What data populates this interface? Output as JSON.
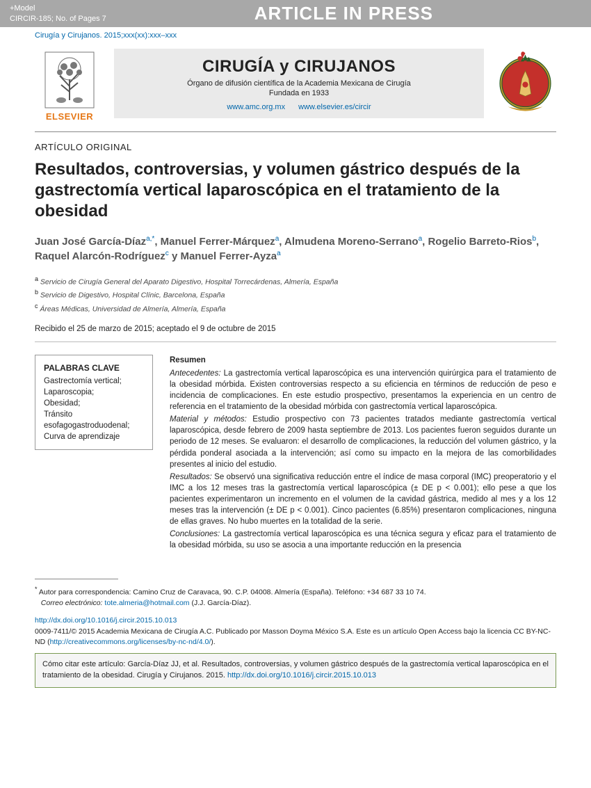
{
  "banner": {
    "model": "+Model",
    "ref": "CIRCIR-185;   No. of Pages 7",
    "press": "ARTICLE IN PRESS"
  },
  "citation_line": "Cirugía y Cirujanos. 2015;xxx(xx):xxx–xxx",
  "masthead": {
    "elsevier": "ELSEVIER",
    "journal_title": "CIRUGÍA y CIRUJANOS",
    "subtitle": "Órgano de difusión científica de la Academia Mexicana de Cirugía",
    "founded": "Fundada en 1933",
    "link1": "www.amc.org.mx",
    "link2": "www.elsevier.es/circir"
  },
  "article": {
    "type": "ARTÍCULO ORIGINAL",
    "title": "Resultados, controversias, y volumen gástrico después de la gastrectomía vertical laparoscópica en el tratamiento de la obesidad",
    "authors_html": "Juan José García-Díaz<sup>a,*</sup>, Manuel Ferrer-Márquez<sup>a</sup>, Almudena Moreno-Serrano<sup>a</sup>, Rogelio Barreto-Rios<sup>b</sup>, Raquel Alarcón-Rodríguez<sup>c</sup> y Manuel Ferrer-Ayza<sup>a</sup>",
    "affiliations": [
      {
        "sup": "a",
        "text": "Servicio de Cirugía General del Aparato Digestivo, Hospital Torrecárdenas, Almería, España"
      },
      {
        "sup": "b",
        "text": "Servicio de Digestivo, Hospital Clínic, Barcelona, España"
      },
      {
        "sup": "c",
        "text": "Áreas Médicas, Universidad de Almería, Almería, España"
      }
    ],
    "dates": "Recibido el 25 de marzo de 2015; aceptado el 9 de octubre de 2015"
  },
  "keywords": {
    "head": "PALABRAS CLAVE",
    "items": "Gastrectomía vertical;\nLaparoscopia;\nObesidad;\nTránsito esofagogastroduodenal;\nCurva de aprendizaje"
  },
  "abstract": {
    "head": "Resumen",
    "antecedentes_label": "Antecedentes:",
    "antecedentes": " La gastrectomía vertical laparoscópica es una intervención quirúrgica para el tratamiento de la obesidad mórbida. Existen controversias respecto a su eficiencia en términos de reducción de peso e incidencia de complicaciones. En este estudio prospectivo, presentamos la experiencia en un centro de referencia en el tratamiento de la obesidad mórbida con gastrectomía vertical laparoscópica.",
    "material_label": "Material y métodos:",
    "material": " Estudio prospectivo con 73 pacientes tratados mediante gastrectomía vertical laparoscópica, desde febrero de 2009 hasta septiembre de 2013. Los pacientes fueron seguidos durante un periodo de 12 meses. Se evaluaron: el desarrollo de complicaciones, la reducción del volumen gástrico, y la pérdida ponderal asociada a la intervención; así como su impacto en la mejora de las comorbilidades presentes al inicio del estudio.",
    "resultados_label": "Resultados:",
    "resultados": " Se observó una significativa reducción entre el índice de masa corporal (IMC) preoperatorio y el IMC a los 12 meses tras la gastrectomía vertical laparoscópica (± DE p < 0.001); ello pese a que los pacientes experimentaron un incremento en el volumen de la cavidad gástrica, medido al mes y a los 12 meses tras la intervención (± DE p < 0.001). Cinco pacientes (6.85%) presentaron complicaciones, ninguna de ellas graves. No hubo muertes en la totalidad de la serie.",
    "conclusiones_label": "Conclusiones:",
    "conclusiones": " La gastrectomía vertical laparoscópica es una técnica segura y eficaz para el tratamiento de la obesidad mórbida, su uso se asocia a una importante reducción en la presencia"
  },
  "footer": {
    "corr_marker": "*",
    "corr_text": "Autor para correspondencia: Camino Cruz de Caravaca, 90. C.P. 04008. Almería (España). Teléfono: +34 687 33 10 74.",
    "email_label": "Correo electrónico:",
    "email": "tote.almeria@hotmail.com",
    "email_tail": " (J.J. García-Díaz).",
    "doi": "http://dx.doi.org/10.1016/j.circir.2015.10.013",
    "issn_line": "0009-7411/© 2015 Academia Mexicana de Cirugía A.C. Publicado por Masson Doyma México S.A. Este es un artículo Open Access bajo la licencia CC BY-NC-ND (",
    "cc_link": "http://creativecommons.org/licenses/by-nc-nd/4.0/",
    "issn_tail": ").",
    "cite_lead": "Cómo citar este artículo: García-Díaz JJ, et al. Resultados, controversias, y volumen gástrico después de la gastrectomía vertical laparoscópica en el tratamiento de la obesidad. Cirugía y Cirujanos. 2015. ",
    "cite_doi": "http://dx.doi.org/10.1016/j.circir.2015.10.013"
  },
  "colors": {
    "banner_bg": "#a8a8a8",
    "link": "#0066aa",
    "elsevier_orange": "#e67817",
    "journal_box_bg": "#eaeaea",
    "author_gray": "#555555",
    "cite_border": "#7a9a52",
    "cite_bg": "#f5f5f5"
  }
}
